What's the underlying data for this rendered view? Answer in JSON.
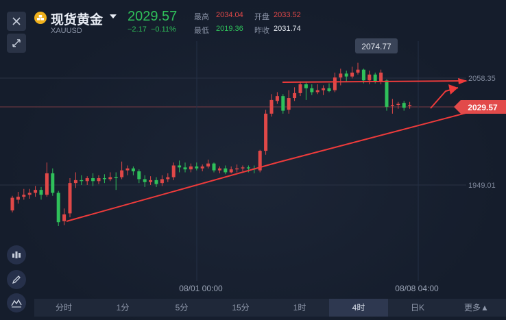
{
  "header": {
    "title": "现货黄金",
    "symbol": "XAUUSD",
    "price": "2029.57",
    "change_abs": "−2.17",
    "change_pct": "−0.11%",
    "stats": {
      "high_label": "最高",
      "high_value": "2034.04",
      "open_label": "开盘",
      "open_value": "2033.52",
      "low_label": "最低",
      "low_value": "2019.36",
      "prev_close_label": "昨收",
      "prev_close_value": "2031.74"
    }
  },
  "colors": {
    "up": "#e04848",
    "down": "#2fc05a",
    "accent": "#f0b11c",
    "annotation": "#ee3b3b"
  },
  "icons": [
    "close-icon",
    "expand-icon",
    "indicator-icon",
    "pen-icon",
    "chart-type-icon",
    "gold-icon",
    "chevron-down-icon"
  ],
  "chart": {
    "type": "candlestick",
    "x_tick_labels": [
      "08/01 00:00",
      "08/08 04:00"
    ],
    "y_tick_labels": [
      "2058.35",
      "1949.01"
    ],
    "max_label": "2074.77",
    "current_price_label": "2029.57"
  },
  "chart_data": {
    "type": "candlestick",
    "y_ticks": [
      2058.35,
      1949.01
    ],
    "x_ticks": [
      "08/01 00:00",
      "08/08 04:00"
    ],
    "max_marker": 2074.77,
    "current_price": 2029.57,
    "candles": [
      {
        "o": 1923,
        "c": 1936,
        "h": 1938,
        "l": 1921
      },
      {
        "o": 1934,
        "c": 1937,
        "h": 1942,
        "l": 1930
      },
      {
        "o": 1937,
        "c": 1939,
        "h": 1945,
        "l": 1934
      },
      {
        "o": 1939,
        "c": 1941,
        "h": 1945,
        "l": 1935
      },
      {
        "o": 1941,
        "c": 1944,
        "h": 1948,
        "l": 1937
      },
      {
        "o": 1944,
        "c": 1939,
        "h": 1947,
        "l": 1934
      },
      {
        "o": 1939,
        "c": 1961,
        "h": 1972,
        "l": 1937
      },
      {
        "o": 1961,
        "c": 1941,
        "h": 1966,
        "l": 1938
      },
      {
        "o": 1941,
        "c": 1911,
        "h": 1943,
        "l": 1907
      },
      {
        "o": 1912,
        "c": 1919,
        "h": 1925,
        "l": 1908
      },
      {
        "o": 1920,
        "c": 1951,
        "h": 1956,
        "l": 1916
      },
      {
        "o": 1951,
        "c": 1954,
        "h": 1962,
        "l": 1946
      },
      {
        "o": 1954,
        "c": 1953,
        "h": 1959,
        "l": 1949
      },
      {
        "o": 1953,
        "c": 1956,
        "h": 1958,
        "l": 1949
      },
      {
        "o": 1956,
        "c": 1953,
        "h": 1961,
        "l": 1948
      },
      {
        "o": 1953,
        "c": 1956,
        "h": 1959,
        "l": 1950
      },
      {
        "o": 1956,
        "c": 1955,
        "h": 1960,
        "l": 1951
      },
      {
        "o": 1955,
        "c": 1957,
        "h": 1962,
        "l": 1953
      },
      {
        "o": 1957,
        "c": 1956,
        "h": 1962,
        "l": 1944
      },
      {
        "o": 1957,
        "c": 1964,
        "h": 1973,
        "l": 1955
      },
      {
        "o": 1964,
        "c": 1966,
        "h": 1969,
        "l": 1959
      },
      {
        "o": 1966,
        "c": 1963,
        "h": 1968,
        "l": 1959
      },
      {
        "o": 1963,
        "c": 1955,
        "h": 1965,
        "l": 1951
      },
      {
        "o": 1955,
        "c": 1952,
        "h": 1959,
        "l": 1947
      },
      {
        "o": 1952,
        "c": 1954,
        "h": 1958,
        "l": 1949
      },
      {
        "o": 1954,
        "c": 1950,
        "h": 1957,
        "l": 1947
      },
      {
        "o": 1951,
        "c": 1955,
        "h": 1959,
        "l": 1948
      },
      {
        "o": 1955,
        "c": 1957,
        "h": 1961,
        "l": 1952
      },
      {
        "o": 1957,
        "c": 1969,
        "h": 1972,
        "l": 1954
      },
      {
        "o": 1969,
        "c": 1967,
        "h": 1974,
        "l": 1962
      },
      {
        "o": 1967,
        "c": 1965,
        "h": 1972,
        "l": 1962
      },
      {
        "o": 1965,
        "c": 1968,
        "h": 1971,
        "l": 1962
      },
      {
        "o": 1968,
        "c": 1966,
        "h": 1972,
        "l": 1964
      },
      {
        "o": 1966,
        "c": 1968,
        "h": 1970,
        "l": 1963
      },
      {
        "o": 1968,
        "c": 1971,
        "h": 1975,
        "l": 1966
      },
      {
        "o": 1971,
        "c": 1964,
        "h": 1972,
        "l": 1962
      },
      {
        "o": 1964,
        "c": 1966,
        "h": 1968,
        "l": 1961
      },
      {
        "o": 1966,
        "c": 1962,
        "h": 1969,
        "l": 1960
      },
      {
        "o": 1962,
        "c": 1965,
        "h": 1968,
        "l": 1961
      },
      {
        "o": 1965,
        "c": 1966,
        "h": 1970,
        "l": 1962
      },
      {
        "o": 1966,
        "c": 1967,
        "h": 1969,
        "l": 1963
      },
      {
        "o": 1967,
        "c": 1966,
        "h": 1969,
        "l": 1962
      },
      {
        "o": 1966,
        "c": 1965,
        "h": 1969,
        "l": 1961
      },
      {
        "o": 1964,
        "c": 1984,
        "h": 1985,
        "l": 1962
      },
      {
        "o": 1984,
        "c": 2022,
        "h": 2026,
        "l": 1980
      },
      {
        "o": 2022,
        "c": 2036,
        "h": 2042,
        "l": 2019
      },
      {
        "o": 2035,
        "c": 2040,
        "h": 2044,
        "l": 2032
      },
      {
        "o": 2040,
        "c": 2025,
        "h": 2042,
        "l": 2022
      },
      {
        "o": 2026,
        "c": 2038,
        "h": 2046,
        "l": 2022
      },
      {
        "o": 2038,
        "c": 2043,
        "h": 2049,
        "l": 2035
      },
      {
        "o": 2043,
        "c": 2052,
        "h": 2055,
        "l": 2040
      },
      {
        "o": 2052,
        "c": 2048,
        "h": 2055,
        "l": 2036
      },
      {
        "o": 2048,
        "c": 2044,
        "h": 2052,
        "l": 2041
      },
      {
        "o": 2044,
        "c": 2046,
        "h": 2052,
        "l": 2042
      },
      {
        "o": 2046,
        "c": 2048,
        "h": 2051,
        "l": 2041
      },
      {
        "o": 2048,
        "c": 2045,
        "h": 2053,
        "l": 2044
      },
      {
        "o": 2046,
        "c": 2059,
        "h": 2064,
        "l": 2044
      },
      {
        "o": 2059,
        "c": 2063,
        "h": 2068,
        "l": 2051
      },
      {
        "o": 2063,
        "c": 2060,
        "h": 2066,
        "l": 2055
      },
      {
        "o": 2060,
        "c": 2064,
        "h": 2070,
        "l": 2058
      },
      {
        "o": 2064,
        "c": 2067,
        "h": 2074,
        "l": 2062
      },
      {
        "o": 2067,
        "c": 2056,
        "h": 2068,
        "l": 2053
      },
      {
        "o": 2056,
        "c": 2062,
        "h": 2066,
        "l": 2052
      },
      {
        "o": 2062,
        "c": 2055,
        "h": 2064,
        "l": 2053
      },
      {
        "o": 2055,
        "c": 2064,
        "h": 2067,
        "l": 2052
      },
      {
        "o": 2056,
        "c": 2029,
        "h": 2057,
        "l": 2025
      },
      {
        "o": 2030,
        "c": 2031,
        "h": 2037,
        "l": 2022
      },
      {
        "o": 2031,
        "c": 2032,
        "h": 2034,
        "l": 2027
      },
      {
        "o": 2033,
        "c": 2028,
        "h": 2035,
        "l": 2025
      },
      {
        "o": 2030,
        "c": 2031,
        "h": 2034,
        "l": 2027
      }
    ]
  },
  "tabs": [
    {
      "label": "分时"
    },
    {
      "label": "1分"
    },
    {
      "label": "5分"
    },
    {
      "label": "15分"
    },
    {
      "label": "1时"
    },
    {
      "label": "4时",
      "active": true
    },
    {
      "label": "日K"
    },
    {
      "label": "更多▲"
    }
  ]
}
